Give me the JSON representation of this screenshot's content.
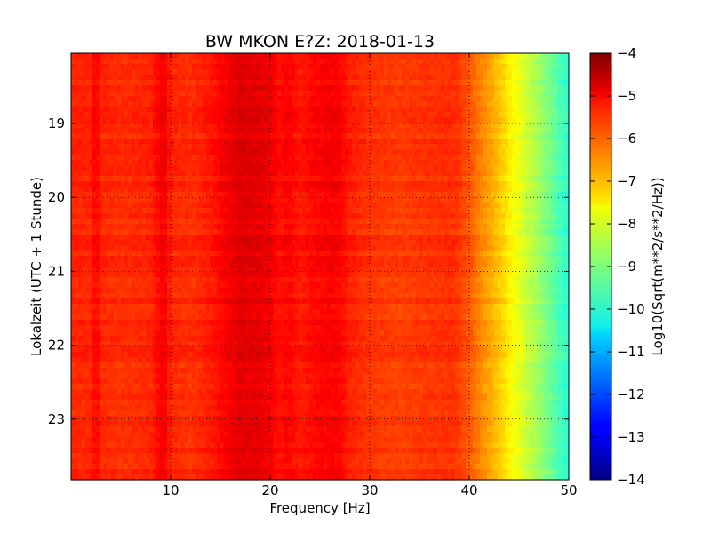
{
  "chart_data": {
    "type": "heatmap",
    "title": "BW MKON E?Z: 2018-01-13",
    "xlabel": "Frequency [Hz]",
    "ylabel": "Lokalzeit (UTC + 1 Stunde)",
    "xlim": [
      0,
      50
    ],
    "ylim": [
      18.05,
      23.82
    ],
    "x_ticks": [
      {
        "value": 10,
        "label": "10"
      },
      {
        "value": 20,
        "label": "20"
      },
      {
        "value": 30,
        "label": "30"
      },
      {
        "value": 40,
        "label": "40"
      },
      {
        "value": 50,
        "label": "50"
      }
    ],
    "y_ticks": [
      {
        "value": 19,
        "label": "19"
      },
      {
        "value": 20,
        "label": "20"
      },
      {
        "value": 21,
        "label": "21"
      },
      {
        "value": 22,
        "label": "22"
      },
      {
        "value": 23,
        "label": "23"
      }
    ],
    "grid": true,
    "colormap": "jet",
    "colorbar": {
      "label": "Log10(Sqrt(m**2/s**2/Hz))",
      "range": [
        -14,
        -4
      ],
      "ticks": [
        {
          "value": -4,
          "label": "−4"
        },
        {
          "value": -5,
          "label": "−5"
        },
        {
          "value": -6,
          "label": "−6"
        },
        {
          "value": -7,
          "label": "−7"
        },
        {
          "value": -8,
          "label": "−8"
        },
        {
          "value": -9,
          "label": "−9"
        },
        {
          "value": -10,
          "label": "−10"
        },
        {
          "value": -11,
          "label": "−11"
        },
        {
          "value": -12,
          "label": "−12"
        },
        {
          "value": -13,
          "label": "−13"
        },
        {
          "value": -14,
          "label": "−14"
        }
      ]
    },
    "spectrum_profile": {
      "frequency_hz": [
        0,
        2,
        2.5,
        3,
        5,
        8,
        9.3,
        10,
        12,
        14,
        15,
        16,
        17,
        18,
        19,
        20,
        21,
        21.8,
        23,
        24.5,
        26,
        27,
        28,
        30,
        33,
        36,
        38.5,
        40,
        41,
        42,
        43,
        44,
        45,
        46,
        47,
        48,
        49,
        50
      ],
      "log10_psd": [
        -5.6,
        -5.6,
        -5.2,
        -5.6,
        -5.7,
        -5.6,
        -5.1,
        -5.6,
        -5.7,
        -5.5,
        -5.3,
        -5.1,
        -4.95,
        -5.0,
        -5.0,
        -5.15,
        -5.4,
        -5.25,
        -5.5,
        -5.3,
        -5.2,
        -5.25,
        -5.55,
        -5.75,
        -5.85,
        -5.75,
        -5.7,
        -6.1,
        -6.5,
        -6.85,
        -7.2,
        -7.6,
        -8.0,
        -8.35,
        -8.7,
        -9.1,
        -9.5,
        -9.85
      ]
    }
  }
}
